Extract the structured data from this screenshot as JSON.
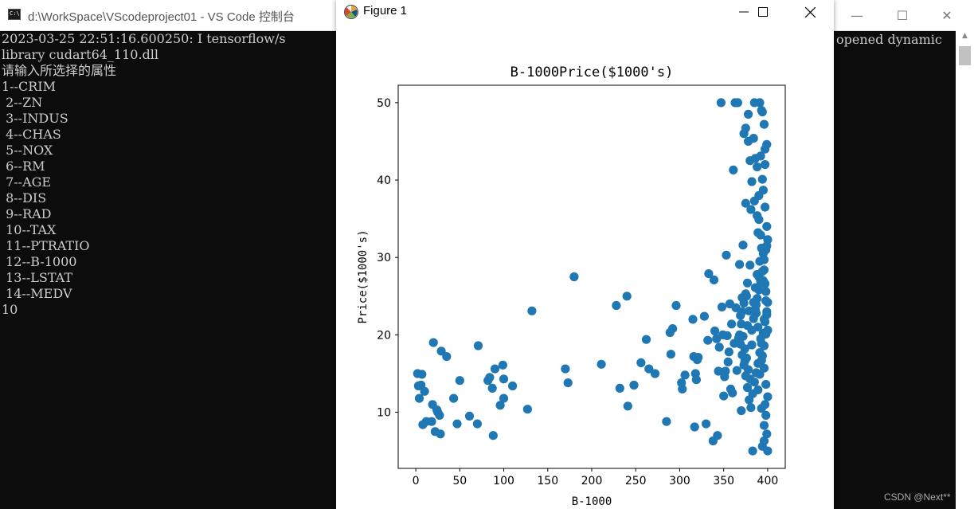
{
  "console": {
    "title": "d:\\WorkSpace\\VScodeproject01 - VS Code 控制台",
    "icon": "cmd-icon",
    "lines": [
      "2023-03-25 22:51:16.600250: I tensorflow/s",
      "library cudart64_110.dll",
      "请输入所选择的属性",
      "1--CRIM",
      " 2--ZN",
      " 3--INDUS",
      " 4--CHAS",
      " 5--NOX",
      " 6--RM",
      " 7--AGE",
      " 8--DIS",
      " 9--RAD",
      " 10--TAX",
      " 11--PTRATIO",
      " 12--B-1000",
      " 13--LSTAT",
      " 14--MEDV",
      "10"
    ],
    "right_fragment": "opened dynamic",
    "watermark": "CSDN @Next**"
  },
  "figure": {
    "title": "Figure 1",
    "icon": "matplotlib-icon"
  },
  "chart_data": {
    "type": "scatter",
    "title": "B-1000Price($1000's)",
    "xlabel": "B-1000",
    "ylabel": "Price($1000's)",
    "xlim": [
      -20,
      420
    ],
    "ylim": [
      2.75,
      52.25
    ],
    "xticks": [
      0,
      50,
      100,
      150,
      200,
      250,
      300,
      350,
      400
    ],
    "yticks": [
      10,
      20,
      30,
      40,
      50
    ],
    "color": "#1f77b4",
    "points": [
      [
        2,
        15.0
      ],
      [
        7,
        14.9
      ],
      [
        3,
        13.4
      ],
      [
        6,
        13.5
      ],
      [
        10,
        12.7
      ],
      [
        4,
        11.8
      ],
      [
        8,
        8.4
      ],
      [
        12,
        8.8
      ],
      [
        18,
        8.8
      ],
      [
        19,
        11.0
      ],
      [
        20,
        19.0
      ],
      [
        22,
        7.5
      ],
      [
        24,
        10.3
      ],
      [
        25,
        10.0
      ],
      [
        27,
        9.6
      ],
      [
        28,
        7.2
      ],
      [
        29,
        17.9
      ],
      [
        35,
        17.2
      ],
      [
        43,
        11.8
      ],
      [
        47,
        8.5
      ],
      [
        50,
        14.1
      ],
      [
        61,
        9.5
      ],
      [
        70,
        8.5
      ],
      [
        71,
        18.6
      ],
      [
        82,
        14.1
      ],
      [
        84,
        14.5
      ],
      [
        87,
        13.1
      ],
      [
        88,
        7.0
      ],
      [
        90,
        15.6
      ],
      [
        96,
        10.9
      ],
      [
        99,
        16.1
      ],
      [
        100,
        14.3
      ],
      [
        100,
        11.8
      ],
      [
        110,
        13.4
      ],
      [
        127,
        10.4
      ],
      [
        132,
        23.1
      ],
      [
        170,
        15.6
      ],
      [
        173,
        13.8
      ],
      [
        180,
        27.5
      ],
      [
        211,
        16.2
      ],
      [
        228,
        23.8
      ],
      [
        232,
        13.1
      ],
      [
        240,
        25.0
      ],
      [
        241,
        10.8
      ],
      [
        248,
        13.5
      ],
      [
        256,
        16.4
      ],
      [
        262,
        19.4
      ],
      [
        265,
        15.6
      ],
      [
        272,
        15.0
      ],
      [
        285,
        8.8
      ],
      [
        289,
        20.3
      ],
      [
        290,
        17.5
      ],
      [
        292,
        20.8
      ],
      [
        296,
        23.8
      ],
      [
        302,
        13.8
      ],
      [
        303,
        13.0
      ],
      [
        306,
        14.8
      ],
      [
        315,
        22.0
      ],
      [
        316,
        17.2
      ],
      [
        317,
        8.1
      ],
      [
        318,
        15.0
      ],
      [
        319,
        14.2
      ],
      [
        320,
        16.8
      ],
      [
        321,
        17.1
      ],
      [
        328,
        22.4
      ],
      [
        330,
        8.5
      ],
      [
        332,
        19.3
      ],
      [
        333,
        27.9
      ],
      [
        338,
        6.3
      ],
      [
        339,
        27.1
      ],
      [
        340,
        20.5
      ],
      [
        342,
        19.5
      ],
      [
        343,
        7.0
      ],
      [
        344,
        15.3
      ],
      [
        345,
        18.4
      ],
      [
        347,
        50.0
      ],
      [
        348,
        23.6
      ],
      [
        349,
        20.0
      ],
      [
        350,
        12.1
      ],
      [
        351,
        14.6
      ],
      [
        352,
        15.3
      ],
      [
        353,
        30.3
      ],
      [
        354,
        19.9
      ],
      [
        355,
        16.5
      ],
      [
        356,
        17.8
      ],
      [
        357,
        24.0
      ],
      [
        358,
        13.0
      ],
      [
        359,
        21.4
      ],
      [
        360,
        12.5
      ],
      [
        361,
        41.3
      ],
      [
        362,
        18.9
      ],
      [
        363,
        50.0
      ],
      [
        364,
        23.5
      ],
      [
        365,
        15.4
      ],
      [
        366,
        50.0
      ],
      [
        367,
        19.6
      ],
      [
        368,
        29.1
      ],
      [
        369,
        22.5
      ],
      [
        370,
        10.2
      ],
      [
        371,
        24.8
      ],
      [
        372,
        31.6
      ],
      [
        373,
        46.0
      ],
      [
        374,
        16.6
      ],
      [
        375,
        37.0
      ],
      [
        376,
        25.0
      ],
      [
        377,
        21.2
      ],
      [
        378,
        48.5
      ],
      [
        379,
        23.1
      ],
      [
        380,
        29.0
      ],
      [
        381,
        36.2
      ],
      [
        382,
        18.7
      ],
      [
        383,
        5.0
      ],
      [
        384,
        45.4
      ],
      [
        385,
        50.0
      ],
      [
        386,
        42.8
      ],
      [
        387,
        23.9
      ],
      [
        388,
        41.7
      ],
      [
        389,
        33.2
      ],
      [
        390,
        27.5
      ],
      [
        391,
        50.0
      ],
      [
        392,
        43.1
      ],
      [
        393,
        10.5
      ],
      [
        394,
        48.8
      ],
      [
        395,
        38.7
      ],
      [
        396,
        22.0
      ],
      [
        397,
        44.0
      ],
      [
        398,
        20.1
      ],
      [
        399,
        31.5
      ],
      [
        400,
        5.0
      ],
      [
        375,
        46.7
      ],
      [
        378,
        45.0
      ],
      [
        380,
        42.5
      ],
      [
        382,
        39.8
      ],
      [
        385,
        37.3
      ],
      [
        388,
        35.4
      ],
      [
        390,
        34.9
      ],
      [
        392,
        32.9
      ],
      [
        395,
        30.5
      ],
      [
        396,
        28.4
      ],
      [
        397,
        26.6
      ],
      [
        398,
        24.4
      ],
      [
        399,
        22.6
      ],
      [
        400,
        20.6
      ],
      [
        396,
        18.6
      ],
      [
        393,
        16.7
      ],
      [
        391,
        14.9
      ],
      [
        389,
        12.9
      ],
      [
        397,
        11.0
      ],
      [
        398,
        9.6
      ],
      [
        396,
        8.3
      ],
      [
        399,
        7.2
      ],
      [
        396,
        6.3
      ],
      [
        394,
        5.6
      ],
      [
        393,
        49.0
      ],
      [
        396,
        47.2
      ],
      [
        399,
        44.6
      ],
      [
        397,
        42.0
      ],
      [
        394,
        40.1
      ],
      [
        390,
        38.0
      ],
      [
        397,
        36.5
      ],
      [
        399,
        34.0
      ],
      [
        393,
        31.2
      ],
      [
        391,
        29.5
      ],
      [
        388,
        27.8
      ],
      [
        386,
        26.1
      ],
      [
        384,
        24.2
      ],
      [
        387,
        22.8
      ],
      [
        389,
        21.0
      ],
      [
        392,
        19.5
      ],
      [
        394,
        17.3
      ],
      [
        396,
        15.7
      ],
      [
        398,
        13.6
      ],
      [
        400,
        12.0
      ],
      [
        370,
        21.4
      ],
      [
        372,
        19.8
      ],
      [
        374,
        18.2
      ],
      [
        376,
        17.0
      ],
      [
        378,
        15.5
      ],
      [
        380,
        14.3
      ],
      [
        382,
        20.6
      ],
      [
        384,
        22.1
      ],
      [
        386,
        23.3
      ],
      [
        388,
        24.7
      ],
      [
        390,
        25.8
      ],
      [
        392,
        26.9
      ],
      [
        394,
        28.2
      ],
      [
        396,
        29.7
      ],
      [
        398,
        31.0
      ],
      [
        400,
        32.3
      ],
      [
        371,
        23.0
      ],
      [
        373,
        24.1
      ],
      [
        375,
        25.3
      ],
      [
        377,
        26.7
      ],
      [
        368,
        20.0
      ],
      [
        369,
        18.8
      ],
      [
        371,
        17.4
      ],
      [
        373,
        16.1
      ],
      [
        375,
        14.7
      ],
      [
        377,
        13.2
      ],
      [
        379,
        11.6
      ],
      [
        381,
        10.6
      ],
      [
        383,
        12.4
      ],
      [
        385,
        13.9
      ],
      [
        387,
        15.1
      ],
      [
        389,
        16.3
      ],
      [
        391,
        17.7
      ],
      [
        393,
        18.9
      ],
      [
        395,
        20.2
      ],
      [
        397,
        21.7
      ],
      [
        399,
        23.0
      ],
      [
        400,
        24.2
      ],
      [
        398,
        25.6
      ],
      [
        395,
        27.0
      ]
    ]
  }
}
